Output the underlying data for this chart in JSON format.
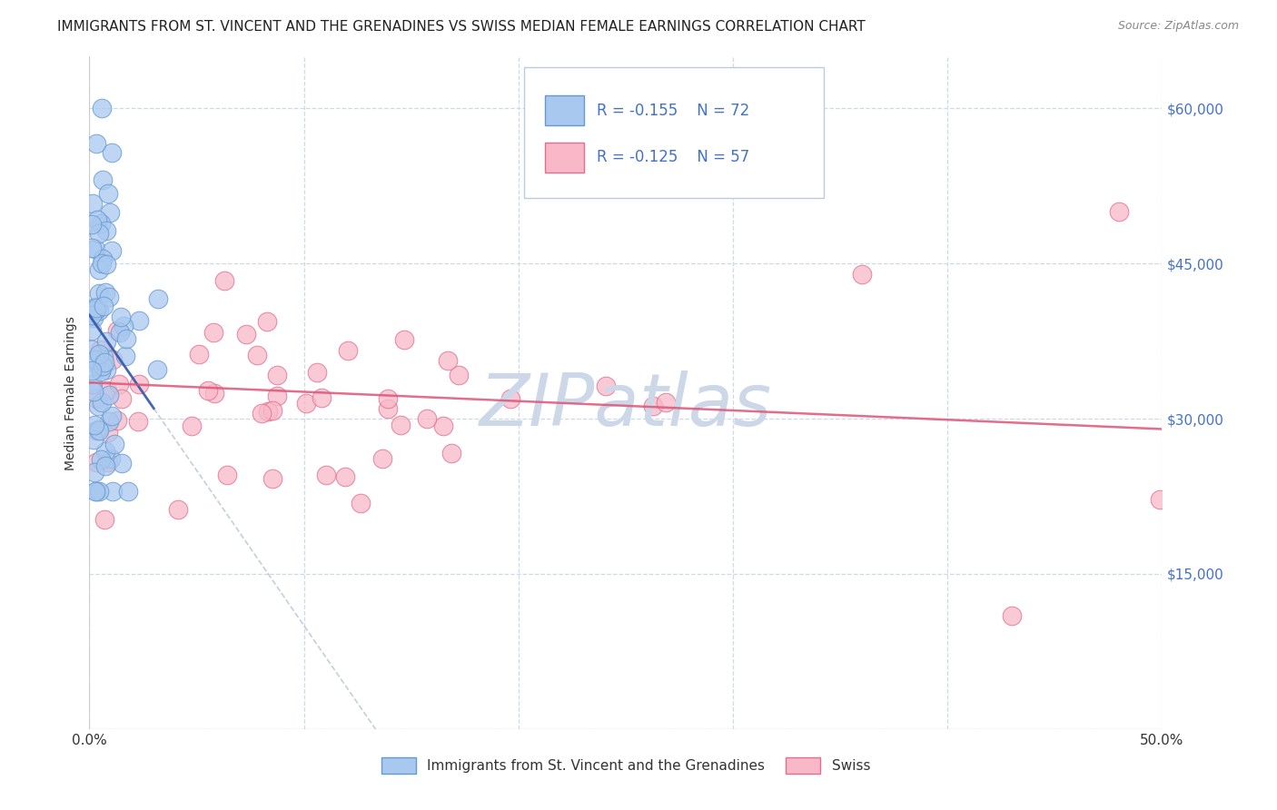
{
  "title": "IMMIGRANTS FROM ST. VINCENT AND THE GRENADINES VS SWISS MEDIAN FEMALE EARNINGS CORRELATION CHART",
  "source": "Source: ZipAtlas.com",
  "ylabel": "Median Female Earnings",
  "xlim": [
    0.0,
    0.5
  ],
  "ylim": [
    0,
    65000
  ],
  "background_color": "#ffffff",
  "grid_color": "#d0d8e8",
  "blue_color": "#a8c8f0",
  "pink_color": "#f8b8c8",
  "blue_edge": "#6699cc",
  "pink_edge": "#e07090",
  "blue_line_color": "#3355aa",
  "pink_line_color": "#dd5577",
  "dashed_line_color": "#aabbcc",
  "legend_label1": "Immigrants from St. Vincent and the Grenadines",
  "legend_label2": "Swiss",
  "legend_text_color": "#4472c4",
  "watermark_color": "#ccd8e8",
  "axis_label_color": "#333333",
  "right_tick_color": "#4472c4",
  "title_fontsize": 11,
  "source_fontsize": 9,
  "tick_fontsize": 11,
  "ylabel_fontsize": 10
}
